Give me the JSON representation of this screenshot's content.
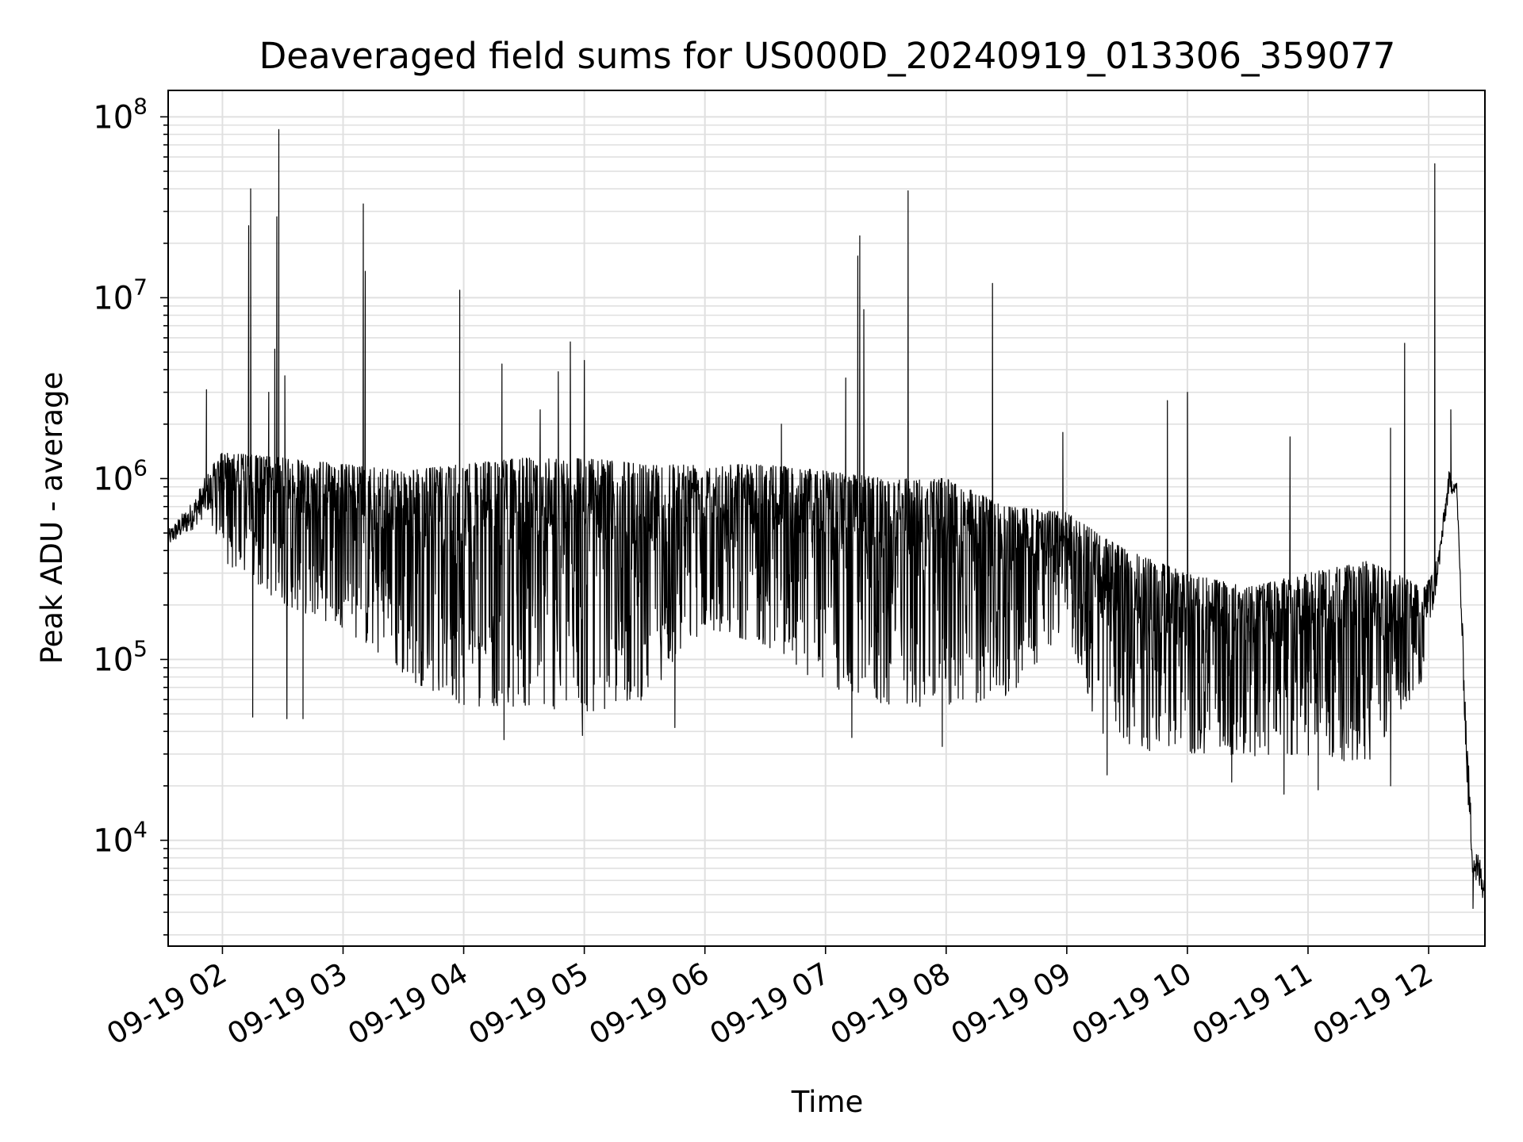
{
  "chart_data": {
    "type": "line",
    "title": "Deaveraged field sums for US000D_20240919_013306_359077",
    "xlabel": "Time",
    "ylabel": "Peak ADU - average",
    "yscale": "log",
    "ylim": [
      2600,
      140000000
    ],
    "xlim": [
      "2024-09-19 01:33",
      "2024-09-19 12:28"
    ],
    "grid": true,
    "line_color": "#000000",
    "grid_color": "#e0e0e0",
    "x_ticks": [
      {
        "time": "2024-09-19 02:00",
        "label": "09-19 02"
      },
      {
        "time": "2024-09-19 03:00",
        "label": "09-19 03"
      },
      {
        "time": "2024-09-19 04:00",
        "label": "09-19 04"
      },
      {
        "time": "2024-09-19 05:00",
        "label": "09-19 05"
      },
      {
        "time": "2024-09-19 06:00",
        "label": "09-19 06"
      },
      {
        "time": "2024-09-19 07:00",
        "label": "09-19 07"
      },
      {
        "time": "2024-09-19 08:00",
        "label": "09-19 08"
      },
      {
        "time": "2024-09-19 09:00",
        "label": "09-19 09"
      },
      {
        "time": "2024-09-19 10:00",
        "label": "09-19 10"
      },
      {
        "time": "2024-09-19 11:00",
        "label": "09-19 11"
      },
      {
        "time": "2024-09-19 12:00",
        "label": "09-19 12"
      }
    ],
    "y_ticks": [
      {
        "value": 10000,
        "base": "10",
        "exp": "4"
      },
      {
        "value": 100000,
        "base": "10",
        "exp": "5"
      },
      {
        "value": 1000000,
        "base": "10",
        "exp": "6"
      },
      {
        "value": 10000000,
        "base": "10",
        "exp": "7"
      },
      {
        "value": 100000000,
        "base": "10",
        "exp": "8"
      }
    ],
    "envelope": [
      {
        "time": "2024-09-19 01:33",
        "low": 420000,
        "high": 520000
      },
      {
        "time": "2024-09-19 01:45",
        "low": 520000,
        "high": 750000
      },
      {
        "time": "2024-09-19 01:53",
        "low": 650000,
        "high": 1100000
      },
      {
        "time": "2024-09-19 02:00",
        "low": 350000,
        "high": 1400000
      },
      {
        "time": "2024-09-19 02:30",
        "low": 200000,
        "high": 1300000
      },
      {
        "time": "2024-09-19 03:00",
        "low": 150000,
        "high": 1200000
      },
      {
        "time": "2024-09-19 03:30",
        "low": 80000,
        "high": 1100000
      },
      {
        "time": "2024-09-19 04:00",
        "low": 55000,
        "high": 1200000
      },
      {
        "time": "2024-09-19 04:30",
        "low": 55000,
        "high": 1300000
      },
      {
        "time": "2024-09-19 05:00",
        "low": 50000,
        "high": 1300000
      },
      {
        "time": "2024-09-19 05:30",
        "low": 60000,
        "high": 1200000
      },
      {
        "time": "2024-09-19 06:00",
        "low": 150000,
        "high": 1200000
      },
      {
        "time": "2024-09-19 06:30",
        "low": 120000,
        "high": 1200000
      },
      {
        "time": "2024-09-19 07:00",
        "low": 70000,
        "high": 1100000
      },
      {
        "time": "2024-09-19 07:30",
        "low": 55000,
        "high": 1000000
      },
      {
        "time": "2024-09-19 08:00",
        "low": 55000,
        "high": 1000000
      },
      {
        "time": "2024-09-19 08:30",
        "low": 60000,
        "high": 700000
      },
      {
        "time": "2024-09-19 09:00",
        "low": 150000,
        "high": 650000
      },
      {
        "time": "2024-09-19 09:15",
        "low": 40000,
        "high": 500000
      },
      {
        "time": "2024-09-19 09:30",
        "low": 32000,
        "high": 400000
      },
      {
        "time": "2024-09-19 10:00",
        "low": 30000,
        "high": 300000
      },
      {
        "time": "2024-09-19 10:30",
        "low": 28000,
        "high": 250000
      },
      {
        "time": "2024-09-19 11:00",
        "low": 28000,
        "high": 300000
      },
      {
        "time": "2024-09-19 11:30",
        "low": 27000,
        "high": 350000
      },
      {
        "time": "2024-09-19 11:58",
        "low": 80000,
        "high": 250000
      },
      {
        "time": "2024-09-19 12:05",
        "low": 300000,
        "high": 400000
      },
      {
        "time": "2024-09-19 12:10",
        "low": 800000,
        "high": 1100000
      },
      {
        "time": "2024-09-19 12:14",
        "low": 850000,
        "high": 950000
      },
      {
        "time": "2024-09-19 12:19",
        "low": 20000,
        "high": 40000
      },
      {
        "time": "2024-09-19 12:22",
        "low": 6000,
        "high": 10000
      },
      {
        "time": "2024-09-19 12:28",
        "low": 4500,
        "high": 7000
      }
    ],
    "spikes": [
      {
        "time": "2024-09-19 01:52",
        "value": 3100000
      },
      {
        "time": "2024-09-19 02:13",
        "value": 25000000
      },
      {
        "time": "2024-09-19 02:14",
        "value": 40000000
      },
      {
        "time": "2024-09-19 02:23",
        "value": 3000000
      },
      {
        "time": "2024-09-19 02:26",
        "value": 5200000
      },
      {
        "time": "2024-09-19 02:27",
        "value": 28000000
      },
      {
        "time": "2024-09-19 02:28",
        "value": 85000000
      },
      {
        "time": "2024-09-19 02:31",
        "value": 3700000
      },
      {
        "time": "2024-09-19 03:10",
        "value": 33000000
      },
      {
        "time": "2024-09-19 03:11",
        "value": 14000000
      },
      {
        "time": "2024-09-19 03:58",
        "value": 11000000
      },
      {
        "time": "2024-09-19 04:19",
        "value": 4300000
      },
      {
        "time": "2024-09-19 04:38",
        "value": 2400000
      },
      {
        "time": "2024-09-19 04:47",
        "value": 3900000
      },
      {
        "time": "2024-09-19 04:53",
        "value": 5700000
      },
      {
        "time": "2024-09-19 05:00",
        "value": 4500000
      },
      {
        "time": "2024-09-19 06:38",
        "value": 2000000
      },
      {
        "time": "2024-09-19 07:10",
        "value": 3600000
      },
      {
        "time": "2024-09-19 07:16",
        "value": 17000000
      },
      {
        "time": "2024-09-19 07:17",
        "value": 22000000
      },
      {
        "time": "2024-09-19 07:19",
        "value": 8600000
      },
      {
        "time": "2024-09-19 07:41",
        "value": 39000000
      },
      {
        "time": "2024-09-19 08:23",
        "value": 12000000
      },
      {
        "time": "2024-09-19 08:58",
        "value": 1800000
      },
      {
        "time": "2024-09-19 09:50",
        "value": 2700000
      },
      {
        "time": "2024-09-19 10:00",
        "value": 3000000
      },
      {
        "time": "2024-09-19 10:51",
        "value": 1700000
      },
      {
        "time": "2024-09-19 11:41",
        "value": 1900000
      },
      {
        "time": "2024-09-19 11:48",
        "value": 5600000
      },
      {
        "time": "2024-09-19 12:03",
        "value": 55000000
      },
      {
        "time": "2024-09-19 12:11",
        "value": 2400000
      }
    ],
    "dips": [
      {
        "time": "2024-09-19 02:15",
        "value": 48000
      },
      {
        "time": "2024-09-19 02:32",
        "value": 47000
      },
      {
        "time": "2024-09-19 02:40",
        "value": 47000
      },
      {
        "time": "2024-09-19 04:20",
        "value": 36000
      },
      {
        "time": "2024-09-19 04:59",
        "value": 38000
      },
      {
        "time": "2024-09-19 05:45",
        "value": 42000
      },
      {
        "time": "2024-09-19 07:13",
        "value": 37000
      },
      {
        "time": "2024-09-19 07:58",
        "value": 33000
      },
      {
        "time": "2024-09-19 09:20",
        "value": 23000
      },
      {
        "time": "2024-09-19 10:22",
        "value": 21000
      },
      {
        "time": "2024-09-19 10:48",
        "value": 18000
      },
      {
        "time": "2024-09-19 11:05",
        "value": 19000
      },
      {
        "time": "2024-09-19 11:41",
        "value": 20000
      },
      {
        "time": "2024-09-19 12:22",
        "value": 4200
      }
    ]
  }
}
